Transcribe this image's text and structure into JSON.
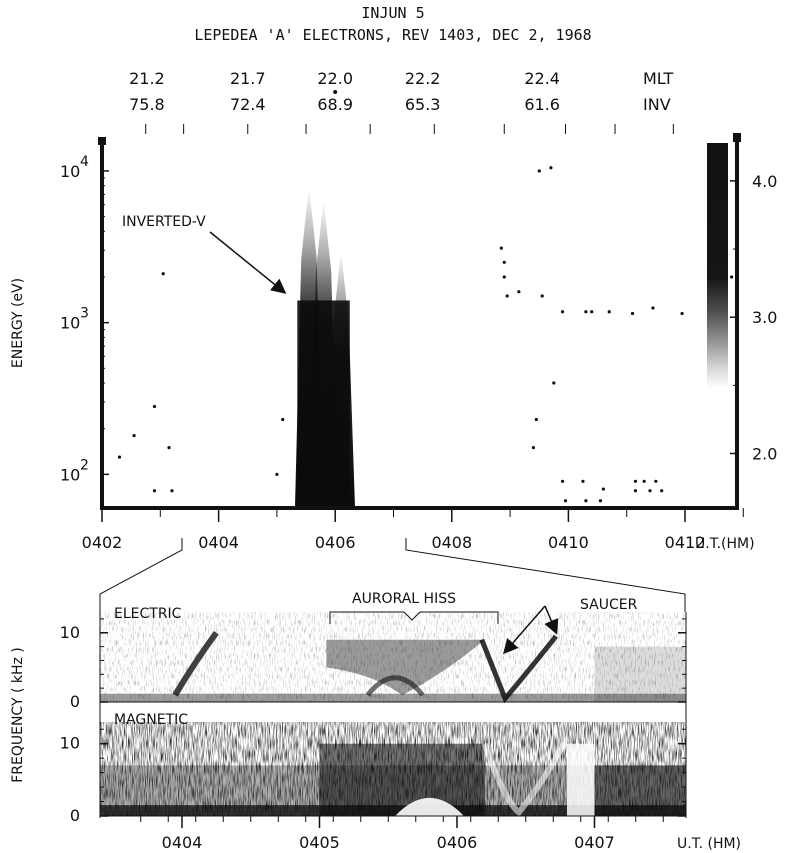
{
  "chart_data": [
    {
      "type": "heatmap",
      "title": "INJUN 5",
      "subtitle": "LEPEDEA 'A' ELECTRONS, REV 1403, DEC 2, 1968",
      "top_axis_rows": [
        {
          "label": "MLT",
          "values": [
            "21.2",
            "21.7",
            "22.0",
            "22.2",
            "22.4"
          ]
        },
        {
          "label": "INV",
          "values": [
            "75.8",
            "72.4",
            "68.9",
            "65.3",
            "61.6"
          ]
        }
      ],
      "xlabel": "U.T.(HM)",
      "x_tick_labels": [
        "0402",
        "0404",
        "0406",
        "0408",
        "0410",
        "0412"
      ],
      "x_ticks": [
        402,
        404,
        406,
        408,
        410,
        412
      ],
      "xlim": [
        402,
        413.2
      ],
      "ylabel": "ENERGY (eV)",
      "y_scale": "log",
      "ylim": [
        60,
        16000
      ],
      "y_tick_labels": [
        {
          "base": "10",
          "exp": "4"
        },
        {
          "base": "10",
          "exp": "3"
        },
        {
          "base": "10",
          "exp": "2"
        }
      ],
      "y_ticks": [
        10000,
        1000,
        100
      ],
      "colorbar_tick_labels": [
        "4.0",
        "3.0",
        "2.0"
      ],
      "colorbar_ticks": [
        4.0,
        3.0,
        2.0
      ],
      "colorbar_range": [
        1.6,
        4.3
      ],
      "annotations": [
        {
          "text": "INVERTED-V",
          "x": 403.3,
          "y": 5500,
          "arrow_to_x": 405.3,
          "arrow_to_y": 2000
        }
      ],
      "features": [
        {
          "name": "inverted-v-spike",
          "x": 405.55,
          "y_min": 60,
          "y_max": 8000
        },
        {
          "name": "inverted-v-spike",
          "x": 405.8,
          "y_min": 60,
          "y_max": 6500
        },
        {
          "name": "inverted-v-spike",
          "x": 406.1,
          "y_min": 60,
          "y_max": 3000
        }
      ]
    },
    {
      "type": "heatmap",
      "panel": "ELECTRIC",
      "ylabel": "FREQUENCY ( kHz )",
      "ylim": [
        0,
        13
      ],
      "y_ticks": [
        0,
        10
      ],
      "xlabel": "U.T. (HM)",
      "x_tick_labels": [
        "0404",
        "0405",
        "0406",
        "0407"
      ],
      "x_ticks": [
        404,
        405,
        406,
        407
      ],
      "annotations": [
        {
          "text": "AURORAL HISS"
        },
        {
          "text": "SAUCER"
        }
      ]
    },
    {
      "type": "heatmap",
      "panel": "MAGNETIC",
      "ylabel": "FREQUENCY ( kHz )",
      "ylim": [
        0,
        13
      ],
      "y_ticks": [
        0,
        10
      ],
      "xlabel": "U.T. (HM)",
      "x_tick_labels": [
        "0404",
        "0405",
        "0406",
        "0407"
      ],
      "x_ticks": [
        404,
        405,
        406,
        407
      ]
    }
  ]
}
